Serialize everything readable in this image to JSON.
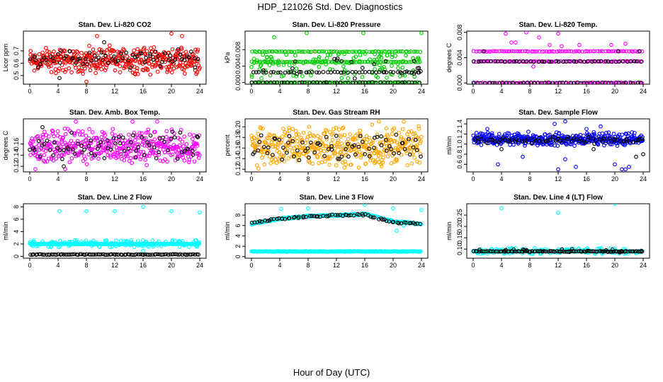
{
  "title": "HDP_121026  Std. Dev. Diagnostics",
  "xlabel": "Hour of Day (UTC)",
  "colors": {
    "red": "#ff0000",
    "green": "#00cc00",
    "magenta": "#ff00ff",
    "orange": "#ffa500",
    "blue": "#0000ff",
    "cyan": "#00ffff",
    "black": "#000000"
  },
  "chart_data": [
    {
      "type": "scatter",
      "title": "Stan. Dev. Li-820 CO2",
      "ylabel": "Licor ppm",
      "xlim": [
        0,
        24
      ],
      "ylim": [
        0.43,
        0.86
      ],
      "xticks": [
        "0",
        "4",
        "8",
        "12",
        "16",
        "20",
        "24"
      ],
      "yticks": [
        "0.5",
        "0.6",
        "0.7"
      ],
      "series": [
        {
          "color": "red",
          "band": [
            0.5,
            0.75
          ],
          "outliers": [
            [
              8,
              0.45
            ],
            [
              20,
              0.84
            ],
            [
              21.5,
              0.82
            ],
            [
              9.5,
              0.82
            ]
          ]
        },
        {
          "color": "black",
          "band": [
            0.55,
            0.72
          ],
          "outliers": [
            [
              10.5,
              0.77
            ],
            [
              4.2,
              0.48
            ]
          ]
        }
      ]
    },
    {
      "type": "scatter",
      "title": "Stan. Dev. Li-820 Pressure",
      "ylabel": "kPa",
      "xlim": [
        0,
        24
      ],
      "ylim": [
        -0.0004,
        0.0125
      ],
      "xticks": [
        "0",
        "4",
        "8",
        "12",
        "16",
        "20",
        "24"
      ],
      "yticks": [
        "0.000",
        "0.004",
        "0.008"
      ],
      "series": [
        {
          "color": "green",
          "levels": [
            0.0,
            0.005,
            0.0075
          ],
          "spread": [
            0.001,
            0.007
          ],
          "outliers": [
            [
              3.2,
              0.011
            ],
            [
              7.8,
              0.012
            ],
            [
              15.8,
              0.012
            ],
            [
              24,
              0.012
            ]
          ]
        },
        {
          "color": "black",
          "levels": [
            0.0,
            0.0025
          ],
          "spread": [
            0.001,
            0.006
          ]
        }
      ]
    },
    {
      "type": "scatter",
      "title": "Stan. Dev. Li-820 Temp.",
      "ylabel": "degrees C",
      "xlim": [
        0,
        24
      ],
      "ylim": [
        -0.0002,
        0.0082
      ],
      "xticks": [
        "0",
        "4",
        "8",
        "12",
        "16",
        "20",
        "24"
      ],
      "yticks": [
        "0.000",
        "0.004",
        "0.008"
      ],
      "series": [
        {
          "color": "magenta",
          "levels": [
            0.0,
            0.0034,
            0.005
          ],
          "outliers": [
            [
              4.6,
              0.0078
            ],
            [
              7.5,
              0.008
            ],
            [
              12,
              0.0078
            ],
            [
              9.3,
              0.0072
            ],
            [
              5.4,
              0.0064
            ],
            [
              10.8,
              0.006
            ],
            [
              12.5,
              0.0058
            ],
            [
              15,
              0.006
            ],
            [
              19.5,
              0.006
            ],
            [
              21.5,
              0.0062
            ],
            [
              8.5,
              0.0026
            ],
            [
              6,
              0.0064
            ]
          ]
        },
        {
          "color": "black",
          "levels": [
            0.0,
            0.0034
          ],
          "outliers": [
            [
              1.5,
              0.005
            ],
            [
              20.5,
              0.005
            ],
            [
              23.5,
              0.005
            ]
          ]
        }
      ]
    },
    {
      "type": "scatter",
      "title": "Stan. Dev. Amb. Box Temp.",
      "ylabel": "degrees C",
      "xlim": [
        0,
        24
      ],
      "ylim": [
        0.11,
        0.205
      ],
      "xticks": [
        "0",
        "4",
        "8",
        "12",
        "16",
        "20",
        "24"
      ],
      "yticks": [
        "0.12",
        "0.14",
        "0.16"
      ],
      "series": [
        {
          "color": "magenta",
          "band": [
            0.12,
            0.19
          ],
          "outliers": [
            [
              6.5,
              0.2
            ],
            [
              14.5,
              0.2
            ],
            [
              18,
              0.2
            ],
            [
              0.8,
              0.115
            ],
            [
              5,
              0.115
            ]
          ]
        },
        {
          "color": "black",
          "band": [
            0.125,
            0.185
          ],
          "outliers": [
            [
              1.8,
              0.19
            ],
            [
              4.8,
              0.12
            ]
          ]
        }
      ]
    },
    {
      "type": "scatter",
      "title": "Stan. Dev. Gas Stream RH",
      "ylabel": "percent",
      "xlim": [
        0,
        24
      ],
      "ylim": [
        0.115,
        0.215
      ],
      "xticks": [
        "0",
        "4",
        "8",
        "12",
        "16",
        "20",
        "24"
      ],
      "yticks": [
        "0.12",
        "0.14",
        "0.16",
        "0.18",
        "0.20"
      ],
      "series": [
        {
          "color": "orange",
          "band": [
            0.12,
            0.205
          ],
          "outliers": [
            [
              18,
              0.21
            ],
            [
              21.5,
              0.21
            ]
          ]
        },
        {
          "color": "black",
          "band": [
            0.135,
            0.19
          ]
        }
      ]
    },
    {
      "type": "scatter",
      "title": "Stan. Dev. Sample Flow",
      "ylabel": "ml/min",
      "xlim": [
        0,
        24
      ],
      "ylim": [
        0.45,
        1.5
      ],
      "xticks": [
        "0",
        "4",
        "8",
        "12",
        "16",
        "20",
        "24"
      ],
      "yticks": [
        "0.6",
        "0.8",
        "1.0",
        "1.2",
        "1.4"
      ],
      "series": [
        {
          "color": "blue",
          "band": [
            0.95,
            1.25
          ],
          "outliers": [
            [
              3.5,
              0.6
            ],
            [
              7,
              0.75
            ],
            [
              12,
              0.5
            ],
            [
              13,
              0.7
            ],
            [
              14.5,
              0.55
            ],
            [
              20,
              0.6
            ],
            [
              21,
              0.5
            ],
            [
              21.5,
              0.5
            ],
            [
              22,
              0.55
            ],
            [
              11.5,
              1.4
            ],
            [
              13,
              1.45
            ],
            [
              2,
              1.3
            ],
            [
              16,
              1.3
            ],
            [
              18,
              1.35
            ]
          ]
        },
        {
          "color": "black",
          "band": [
            1.0,
            1.15
          ],
          "outliers": [
            [
              4,
              0.9
            ],
            [
              23,
              0.75
            ],
            [
              24,
              0.8
            ],
            [
              17,
              0.9
            ]
          ]
        }
      ]
    },
    {
      "type": "scatter",
      "title": "Stan. Dev. Line 2 Flow",
      "ylabel": "ml/min",
      "xlim": [
        0,
        24
      ],
      "ylim": [
        -0.3,
        8.5
      ],
      "xticks": [
        "0",
        "4",
        "8",
        "12",
        "16",
        "20",
        "24"
      ],
      "yticks": [
        "0",
        "2",
        "4",
        "6",
        "8"
      ],
      "series": [
        {
          "color": "cyan",
          "levels": [
            2.0
          ],
          "spread": [
            1.5,
            2.6
          ],
          "outliers": [
            [
              4.2,
              7.3
            ],
            [
              8,
              7.3
            ],
            [
              12,
              7.3
            ],
            [
              16,
              8.0
            ],
            [
              20,
              7.3
            ],
            [
              24,
              7.1
            ],
            [
              16,
              0.9
            ]
          ]
        },
        {
          "color": "black",
          "levels": [
            0.3
          ]
        }
      ]
    },
    {
      "type": "scatter",
      "title": "Stan. Dev. Line 3 Flow",
      "ylabel": "ml/min",
      "xlim": [
        0,
        24
      ],
      "ylim": [
        -0.3,
        10.2
      ],
      "xticks": [
        "0",
        "4",
        "8",
        "12",
        "16",
        "20",
        "24"
      ],
      "yticks": [
        "0",
        "2",
        "4",
        "6",
        "8"
      ],
      "series": [
        {
          "color": "cyan",
          "curve": [
            [
              0,
              6.3
            ],
            [
              4,
              7.3
            ],
            [
              8,
              7.8
            ],
            [
              12,
              8.0
            ],
            [
              16,
              8.2
            ],
            [
              20,
              6.8
            ],
            [
              24,
              6.3
            ]
          ],
          "levels": [
            1.0
          ],
          "outliers": [
            [
              4.2,
              9.2
            ],
            [
              8,
              9.3
            ],
            [
              16,
              10.0
            ],
            [
              20,
              9.3
            ],
            [
              24,
              9.0
            ],
            [
              20.5,
              5.0
            ],
            [
              21.5,
              6.0
            ]
          ]
        },
        {
          "color": "black",
          "curve": [
            [
              0,
              6.6
            ],
            [
              4,
              7.3
            ],
            [
              8,
              7.7
            ],
            [
              12,
              8.0
            ],
            [
              16,
              8.1
            ],
            [
              20,
              6.6
            ],
            [
              24,
              6.3
            ]
          ]
        }
      ]
    },
    {
      "type": "scatter",
      "title": "Stan. Dev. Line 4 (LT) Flow",
      "ylabel": "ml/min",
      "xlim": [
        0,
        24
      ],
      "ylim": [
        0.06,
        0.3
      ],
      "xticks": [
        "0",
        "4",
        "8",
        "12",
        "16",
        "20",
        "24"
      ],
      "yticks": [
        "0.10",
        "0.15",
        "0.20",
        "0.25"
      ],
      "series": [
        {
          "color": "cyan",
          "levels": [
            0.09
          ],
          "spread": [
            0.08,
            0.105
          ],
          "outliers": [
            [
              4,
              0.28
            ],
            [
              12,
              0.26
            ],
            [
              20,
              0.3
            ]
          ]
        },
        {
          "color": "black",
          "levels": [
            0.09
          ],
          "spread": [
            0.085,
            0.1
          ]
        }
      ]
    }
  ]
}
